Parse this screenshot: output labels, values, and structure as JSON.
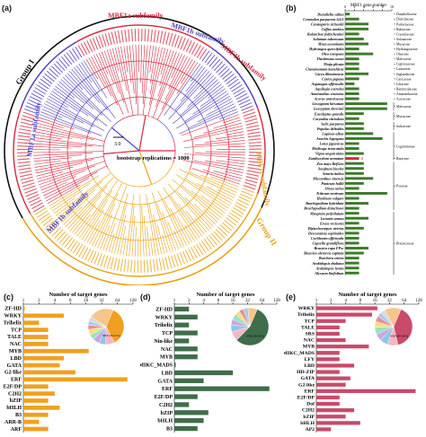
{
  "figure": {
    "labels": {
      "a": "(a)",
      "b": "(b)",
      "c": "(c)",
      "d": "(d)",
      "e": "(e)"
    }
  },
  "panel_a": {
    "subfamily_labels": [
      "MBF1a subfamily",
      "MBF1b subfamily",
      "MBF1a subfamily",
      "MBF1b subfamily",
      "MBF1c subfamily",
      "MBF1b subfamily"
    ],
    "group_labels": [
      "Group I",
      "Group II"
    ],
    "scale": "3.0",
    "bootstrap": "bootstrap replications = 1000",
    "colors": {
      "red": "#d7263d",
      "blue": "#4b3fbf",
      "gold": "#e8a317",
      "black": "#111111"
    }
  },
  "panel_b": {
    "axis_title": "MBF1 gene number",
    "ticks": [
      "0",
      "2",
      "4",
      "6",
      "8",
      "10"
    ],
    "highlight_value": "3",
    "species": [
      {
        "name": "Dunaliella salina",
        "value": 1
      },
      {
        "name": "Ceratodon purpureus GG1",
        "value": 3
      },
      {
        "name": "Ceratopteris richardii",
        "value": 5
      },
      {
        "name": "Coffea arabica",
        "value": 5
      },
      {
        "name": "Kalanchoe fedtschenkoi",
        "value": 3
      },
      {
        "name": "Solanum tuberosum",
        "value": 4
      },
      {
        "name": "Musa acuminata",
        "value": 5
      },
      {
        "name": "Hydrangea quercifolia",
        "value": 3
      },
      {
        "name": "Olea europaea",
        "value": 6
      },
      {
        "name": "Theobroma cacao",
        "value": 3
      },
      {
        "name": "Thuja plicata",
        "value": 3
      },
      {
        "name": "Cinnamomum kanehirae",
        "value": 3
      },
      {
        "name": "Carya illinoinensis",
        "value": 5
      },
      {
        "name": "Carica papaya",
        "value": 3
      },
      {
        "name": "Asparagus officinalis",
        "value": 2
      },
      {
        "name": "Aquilegia coerulea",
        "value": 3
      },
      {
        "name": "Amaranthus cruentus",
        "value": 3
      },
      {
        "name": "Acorus americanus",
        "value": 3
      },
      {
        "name": "Gossypium hirsutum",
        "value": 9
      },
      {
        "name": "Gossypium darwinii",
        "value": 9
      },
      {
        "name": "Eucalyptus grandis",
        "value": 4
      },
      {
        "name": "Corymbia citriodora",
        "value": 3
      },
      {
        "name": "Salix purpurea",
        "value": 4
      },
      {
        "name": "Populus deltoides",
        "value": 4
      },
      {
        "name": "Lupinus albus",
        "value": 6
      },
      {
        "name": "Arachis hypogaea",
        "value": 8
      },
      {
        "name": "Lotus japonicus",
        "value": 3
      },
      {
        "name": "Medicago truncatula",
        "value": 3
      },
      {
        "name": "Vigna unguiculata",
        "value": 4
      },
      {
        "name": "Zanthoxylum armatum",
        "value": 3
      },
      {
        "name": "Zea mays RefGen",
        "value": 4
      },
      {
        "name": "Sorghum bicolor",
        "value": 4
      },
      {
        "name": "Setaria italica",
        "value": 4
      },
      {
        "name": "Miscanthus sinensis",
        "value": 6
      },
      {
        "name": "Panicum hallii",
        "value": 4
      },
      {
        "name": "Oryza sativa",
        "value": 3
      },
      {
        "name": "Triticum aestivum",
        "value": 9
      },
      {
        "name": "Hordeum vulgare",
        "value": 3
      },
      {
        "name": "Brachypodium hybridum",
        "value": 5
      },
      {
        "name": "Brachypodium distachyon",
        "value": 3
      },
      {
        "name": "Myagrum perfoliatum",
        "value": 3
      },
      {
        "name": "Lunaria annua",
        "value": 5
      },
      {
        "name": "Eruca vesicaria",
        "value": 3
      },
      {
        "name": "Diptychocarpus strictus",
        "value": 4
      },
      {
        "name": "Descurainia sophioides",
        "value": 3
      },
      {
        "name": "Cochlearia officinalis",
        "value": 3
      },
      {
        "name": "Capsella grandiflora",
        "value": 3
      },
      {
        "name": "Brassica rapa FPsc",
        "value": 5
      },
      {
        "name": "Brassica oleracea capitata",
        "value": 4
      },
      {
        "name": "Boechera stricta",
        "value": 3
      },
      {
        "name": "Arabidopsis thaliana",
        "value": 3
      },
      {
        "name": "Arabidopsis lyrata",
        "value": 3
      },
      {
        "name": "Alyssum linifolium",
        "value": 3
      }
    ],
    "families": [
      {
        "name": "Dunaliellaceae",
        "row": 0
      },
      {
        "name": "Ditrichaceae",
        "row": 1
      },
      {
        "name": "Parkeriaceae",
        "row": 2
      },
      {
        "name": "Rubiaceae",
        "row": 3
      },
      {
        "name": "Crassulaceae",
        "row": 4
      },
      {
        "name": "Solanaceae",
        "row": 5
      },
      {
        "name": "Musaceae",
        "row": 6
      },
      {
        "name": "Hydrangeaceae",
        "row": 7
      },
      {
        "name": "Oleaceae",
        "row": 8
      },
      {
        "name": "Malvaceae",
        "row": 9
      },
      {
        "name": "Cupressaceae",
        "row": 10
      },
      {
        "name": "Lauraceae",
        "row": 11
      },
      {
        "name": "Juglandaceae",
        "row": 12
      },
      {
        "name": "Caricaceae",
        "row": 13
      },
      {
        "name": "Liliaceae",
        "row": 14
      },
      {
        "name": "Ranunculaceae",
        "row": 15
      },
      {
        "name": "Amaranthaceae",
        "row": 16
      },
      {
        "name": "Acoraceae",
        "row": 17
      },
      {
        "name": "Malvaceae",
        "row": 18.5
      },
      {
        "name": "Myrtaceae",
        "row": 20.5
      },
      {
        "name": "Salicaceae",
        "row": 22.5
      },
      {
        "name": "Leguminosae",
        "row": 26.5
      },
      {
        "name": "Rutaceae",
        "row": 29
      },
      {
        "name": "Poaceae",
        "row": 34.5
      },
      {
        "name": "Brassicaceae",
        "row": 46
      }
    ],
    "colors": {
      "bar": "#3d7a2a",
      "highlight": "#d7263d"
    }
  },
  "panels_cde": {
    "axis_title": "Number of target genes",
    "ticks": [
      "1",
      "2",
      "4",
      "8",
      "16",
      "32",
      "64",
      "128"
    ],
    "c": {
      "color": "#f0a020",
      "categories": [
        "ZF-HD",
        "WRKY",
        "Trihelix",
        "TCP",
        "TALE",
        "NAC",
        "MYB",
        "LBD",
        "GATA",
        "G2-like",
        "ERF",
        "E2F/DP",
        "C2H2",
        "bZIP",
        "bHLH",
        "B3",
        "ARR-B",
        "ARF"
      ],
      "values": [
        1,
        6,
        2,
        3,
        3,
        3,
        18,
        6,
        5,
        10,
        100,
        3,
        4,
        3,
        5,
        3,
        2,
        3
      ],
      "pie_slices": [
        36,
        8,
        6,
        6,
        5,
        5,
        4,
        4,
        4,
        22
      ],
      "pie_colors": [
        "#f0a020",
        "#f4b6c2",
        "#8ec5e8",
        "#c7a8e0",
        "#9be0c6",
        "#f5e07a",
        "#e88f8f",
        "#aac9f0",
        "#d8d8d8",
        "#f7c48a"
      ],
      "pie_label": "ERF (36.21%)"
    },
    "d": {
      "color": "#3f6e4a",
      "categories": [
        "ZF-HD",
        "WRKY",
        "Trihelix",
        "TCP",
        "Nin-like",
        "NAC",
        "MYB",
        "MIKC_MADS",
        "LBD",
        "GATA",
        "ERF",
        "E2F/DP",
        "C2H2",
        "bZIP",
        "bHLH",
        "B3"
      ],
      "values": [
        2,
        3,
        2,
        3,
        2,
        3,
        3,
        1,
        16,
        4,
        90,
        3,
        2,
        5,
        4,
        3
      ],
      "pie_slices": [
        56,
        8,
        6,
        5,
        5,
        4,
        4,
        4,
        8
      ],
      "pie_colors": [
        "#3f6e4a",
        "#f4b6c2",
        "#8ec5e8",
        "#c7a8e0",
        "#9be0c6",
        "#f5e07a",
        "#e88f8f",
        "#aac9f0",
        "#f7c48a"
      ],
      "pie_label": "ERF (56.44%)"
    },
    "e": {
      "color": "#c94a6a",
      "categories": [
        "WRKY",
        "Trihelix",
        "TCP",
        "TALE",
        "SRS",
        "NAC",
        "MYB",
        "MIKC_MADS",
        "LFY",
        "LBD",
        "HD-ZIP",
        "GATA",
        "G2-like",
        "ERF",
        "E2F/DP",
        "Dof",
        "C2H2",
        "bZIP",
        "bHLH",
        "AP2"
      ],
      "values": [
        18,
        14,
        4,
        3,
        3,
        4,
        12,
        3,
        3,
        6,
        3,
        5,
        4,
        110,
        3,
        3,
        6,
        4,
        8,
        2
      ],
      "pie_slices": [
        40,
        9,
        7,
        6,
        6,
        5,
        5,
        4,
        4,
        14
      ],
      "pie_colors": [
        "#c94a6a",
        "#f4b6c2",
        "#8ec5e8",
        "#c7a8e0",
        "#9be0c6",
        "#f5e07a",
        "#e88f8f",
        "#aac9f0",
        "#d8d8d8",
        "#f7c48a"
      ],
      "pie_label": "ERF (40.44%)"
    }
  }
}
